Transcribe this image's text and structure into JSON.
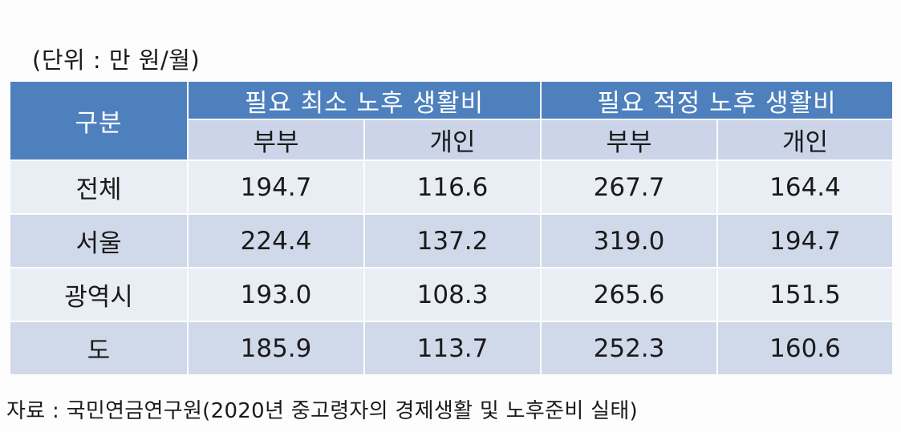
{
  "unit_label": "(단위 : 만 원/월)",
  "source_label": "자료 : 국민연금연구원(2020년 중고령자의 경제생활 및 노후준비 실태)",
  "colors": {
    "header_bg": "#4e80be",
    "subheader_bg": "#cbd4e8",
    "row_light": "#e9edf4",
    "row_dark": "#d0d9ea"
  },
  "chart_data": {
    "type": "table",
    "columns": {
      "category_header": "구분",
      "groups": [
        {
          "label": "필요 최소 노후 생활비",
          "subcolumns": [
            "부부",
            "개인"
          ]
        },
        {
          "label": "필요 적정 노후 생활비",
          "subcolumns": [
            "부부",
            "개인"
          ]
        }
      ]
    },
    "rows": [
      {
        "label": "전체",
        "values": [
          "194.7",
          "116.6",
          "267.7",
          "164.4"
        ]
      },
      {
        "label": "서울",
        "values": [
          "224.4",
          "137.2",
          "319.0",
          "194.7"
        ]
      },
      {
        "label": "광역시",
        "values": [
          "193.0",
          "108.3",
          "265.6",
          "151.5"
        ]
      },
      {
        "label": "도",
        "values": [
          "185.9",
          "113.7",
          "252.3",
          "160.6"
        ]
      }
    ]
  }
}
